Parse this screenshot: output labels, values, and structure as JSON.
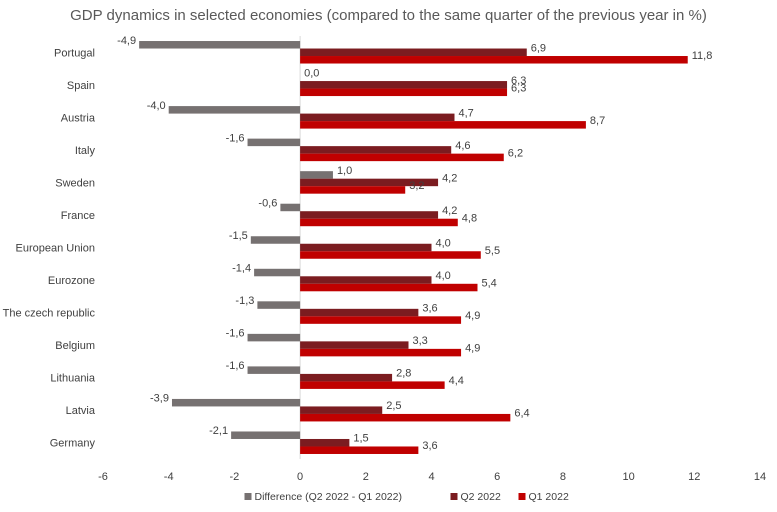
{
  "chart_data": {
    "type": "bar",
    "orientation": "horizontal",
    "title": "GDP dynamics in selected economies (compared to the same quarter of the previous year in %)",
    "xlabel": "",
    "ylabel": "",
    "xlim": [
      -6,
      14
    ],
    "xticks": [
      -6,
      -4,
      -2,
      0,
      2,
      4,
      6,
      8,
      10,
      12,
      14
    ],
    "grid": false,
    "legend_position": "bottom",
    "categories": [
      "Portugal",
      "Spain",
      "Austria",
      "Italy",
      "Sweden",
      "France",
      "European Union",
      "Eurozone",
      "The czech republic",
      "Belgium",
      "Lithuania",
      "Latvia",
      "Germany"
    ],
    "series": [
      {
        "name": "Difference (Q2 2022 - Q1 2022)",
        "color": "#767171",
        "values": [
          -4.9,
          0.0,
          -4.0,
          -1.6,
          1.0,
          -0.6,
          -1.5,
          -1.4,
          -1.3,
          -1.6,
          -1.6,
          -3.9,
          -2.1
        ],
        "labels": [
          "-4,9",
          "0,0",
          "-4,0",
          "-1,6",
          "1,0",
          "-0,6",
          "-1,5",
          "-1,4",
          "-1,3",
          "-1,6",
          "-1,6",
          "-3,9",
          "-2,1"
        ]
      },
      {
        "name": "Q2 2022",
        "color": "#7b1c20",
        "values": [
          6.9,
          6.3,
          4.7,
          4.6,
          4.2,
          4.2,
          4.0,
          4.0,
          3.6,
          3.3,
          2.8,
          2.5,
          1.5
        ],
        "labels": [
          "6,9",
          "6,3",
          "4,7",
          "4,6",
          "4,2",
          "4,2",
          "4,0",
          "4,0",
          "3,6",
          "3,3",
          "2,8",
          "2,5",
          "1,5"
        ]
      },
      {
        "name": "Q1 2022",
        "color": "#c00000",
        "values": [
          11.8,
          6.3,
          8.7,
          6.2,
          3.2,
          4.8,
          5.5,
          5.4,
          4.9,
          4.9,
          4.4,
          6.4,
          3.6
        ],
        "labels": [
          "11,8",
          "6,3",
          "8,7",
          "6,2",
          "3,2",
          "4,8",
          "5,5",
          "5,4",
          "4,9",
          "4,9",
          "4,4",
          "6,4",
          "3,6"
        ]
      }
    ]
  }
}
